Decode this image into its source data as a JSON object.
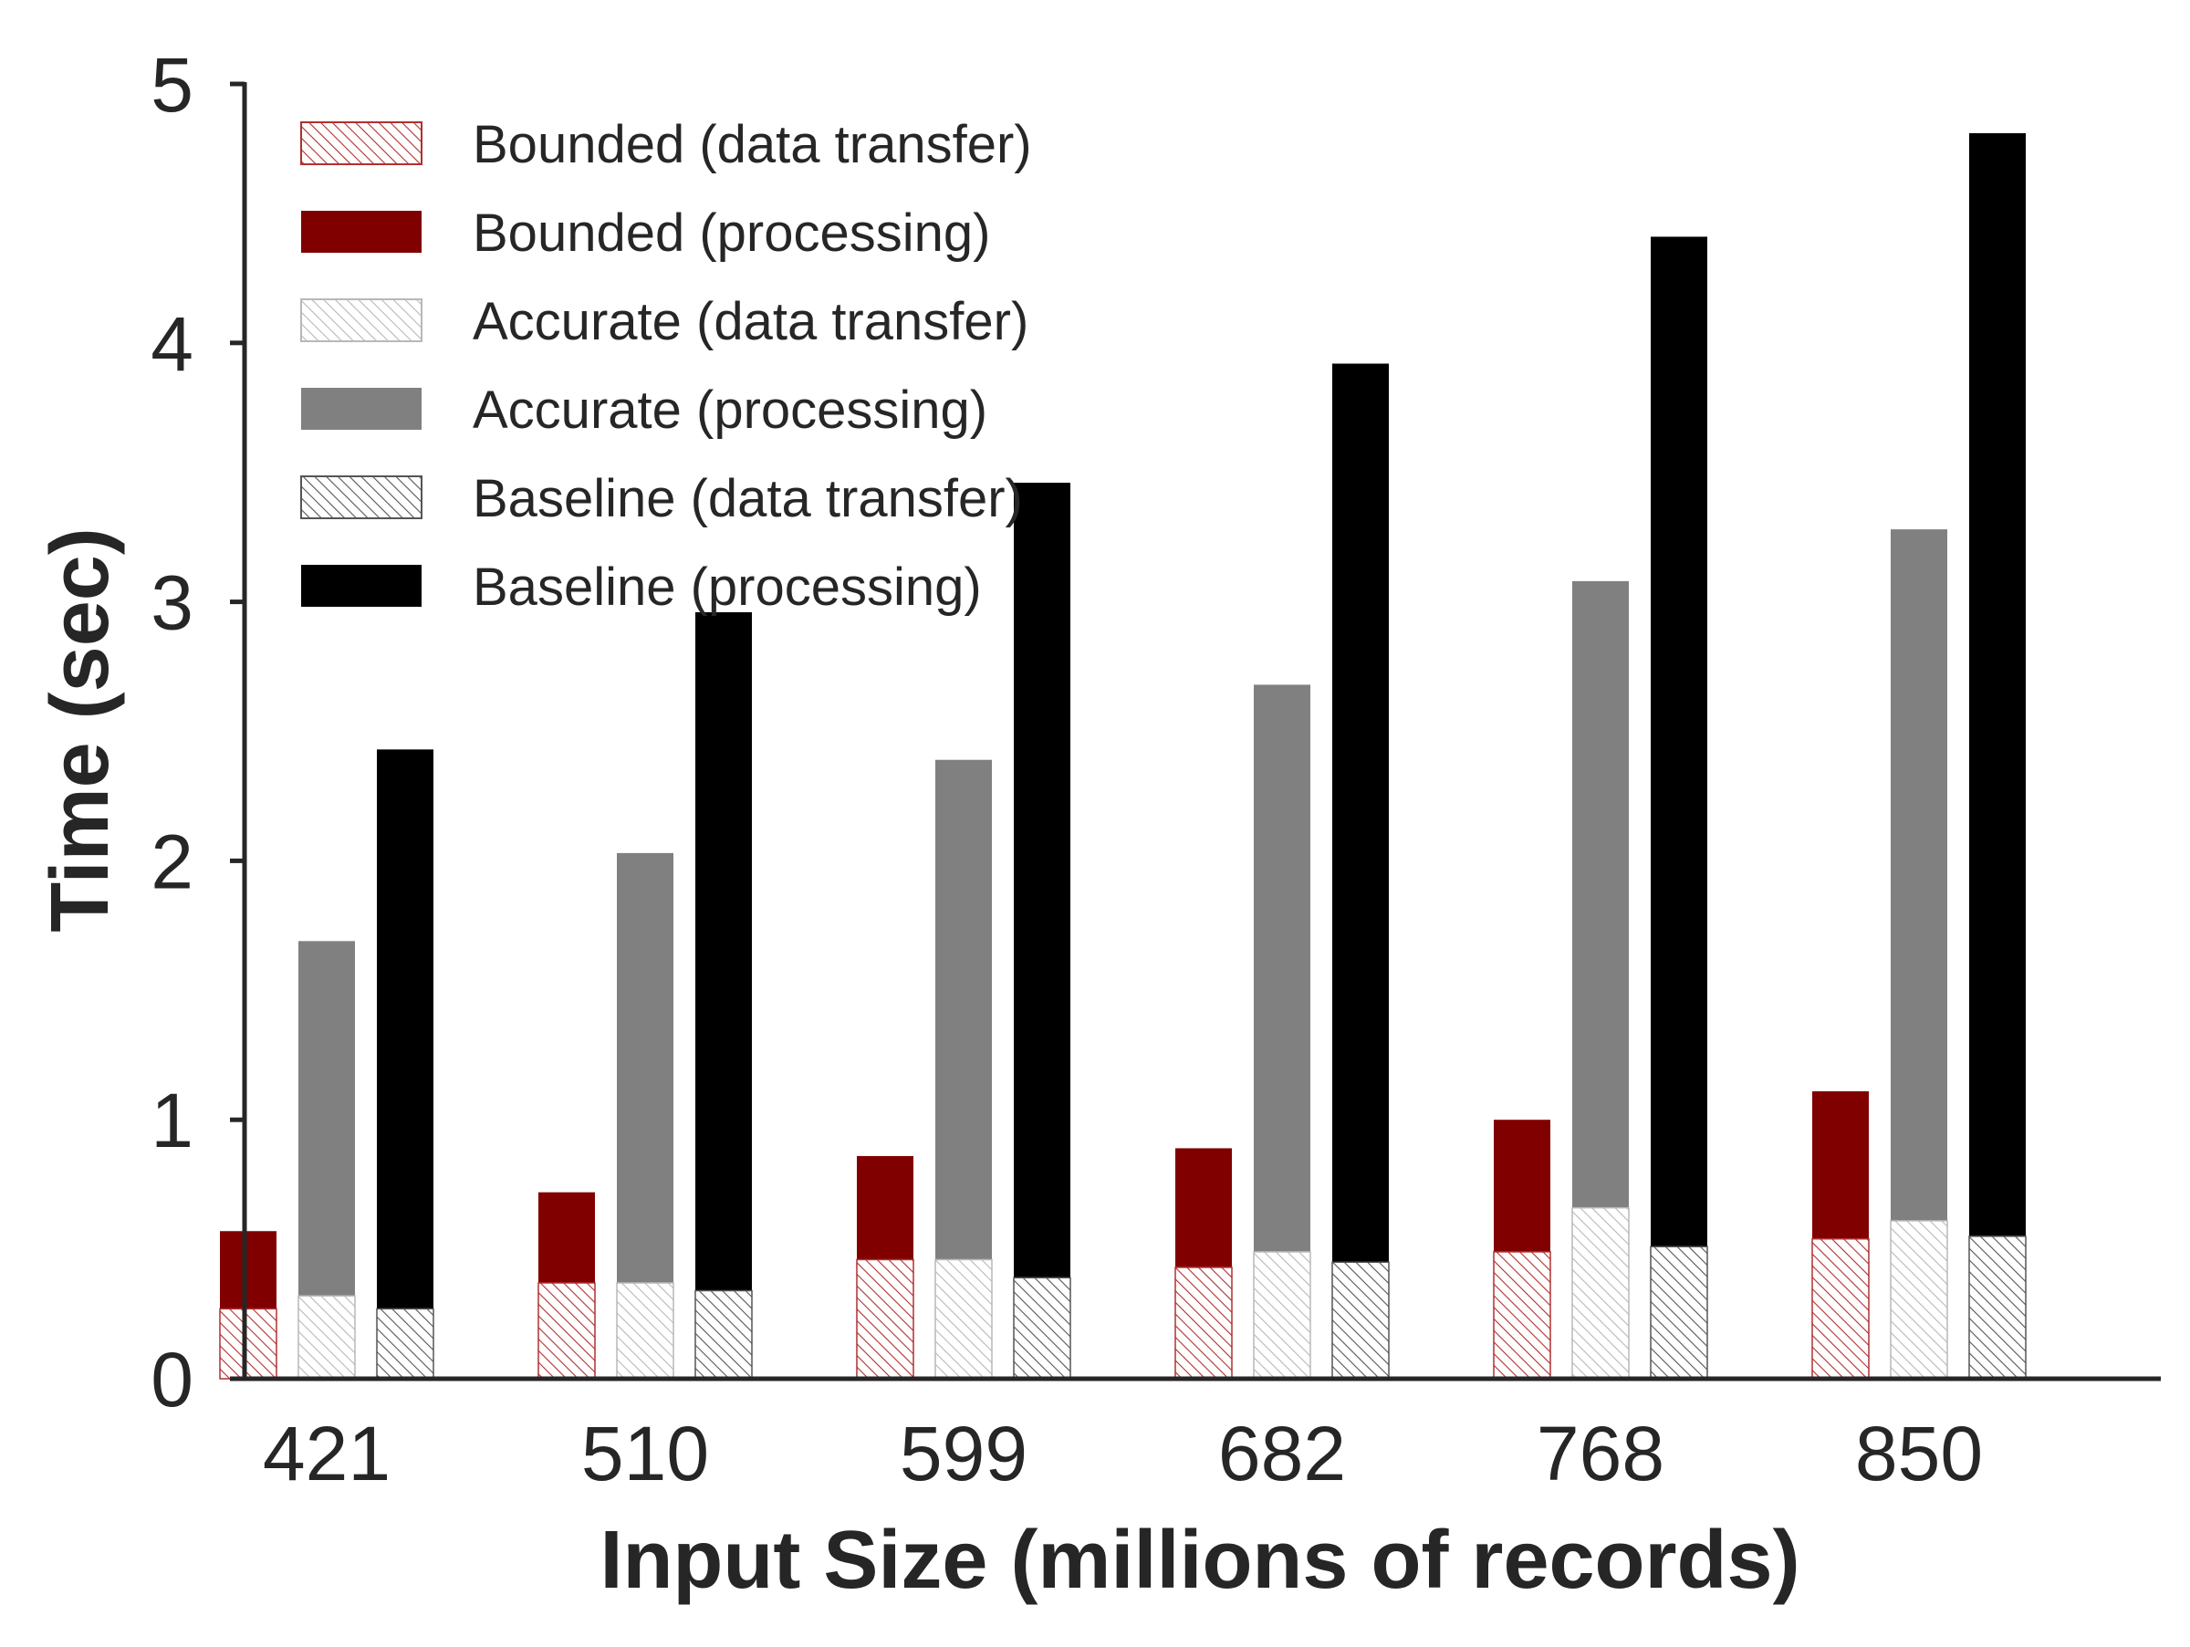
{
  "chart_data": {
    "type": "bar",
    "stacked": true,
    "grouped": true,
    "xlabel": "Input Size (millions of records)",
    "ylabel": "Time (sec)",
    "ylim": [
      0,
      5
    ],
    "yticks": [
      "0",
      "1",
      "2",
      "3",
      "4",
      "5"
    ],
    "categories": [
      "421",
      "510",
      "599",
      "682",
      "768",
      "850"
    ],
    "grid": false,
    "legend_position": "top-left",
    "groups": [
      {
        "name": "Bounded",
        "transfer_label": "Bounded (data transfer)",
        "processing_label": "Bounded (processing)",
        "color": "#800000",
        "transfer_color": "#b03030",
        "data_transfer": [
          0.27,
          0.37,
          0.46,
          0.43,
          0.49,
          0.54
        ],
        "total": [
          0.57,
          0.72,
          0.86,
          0.89,
          1.0,
          1.11
        ]
      },
      {
        "name": "Accurate",
        "transfer_label": "Accurate (data transfer)",
        "processing_label": "Accurate (processing)",
        "color": "#808080",
        "transfer_color": "#b8b8b8",
        "data_transfer": [
          0.32,
          0.37,
          0.46,
          0.49,
          0.66,
          0.61
        ],
        "total": [
          1.69,
          2.03,
          2.39,
          2.68,
          3.08,
          3.28
        ]
      },
      {
        "name": "Baseline",
        "transfer_label": "Baseline (data transfer)",
        "processing_label": "Baseline (processing)",
        "color": "#000000",
        "transfer_color": "#555555",
        "data_transfer": [
          0.27,
          0.34,
          0.39,
          0.45,
          0.51,
          0.55
        ],
        "total": [
          2.43,
          2.96,
          3.46,
          3.92,
          4.41,
          4.81
        ]
      }
    ]
  }
}
